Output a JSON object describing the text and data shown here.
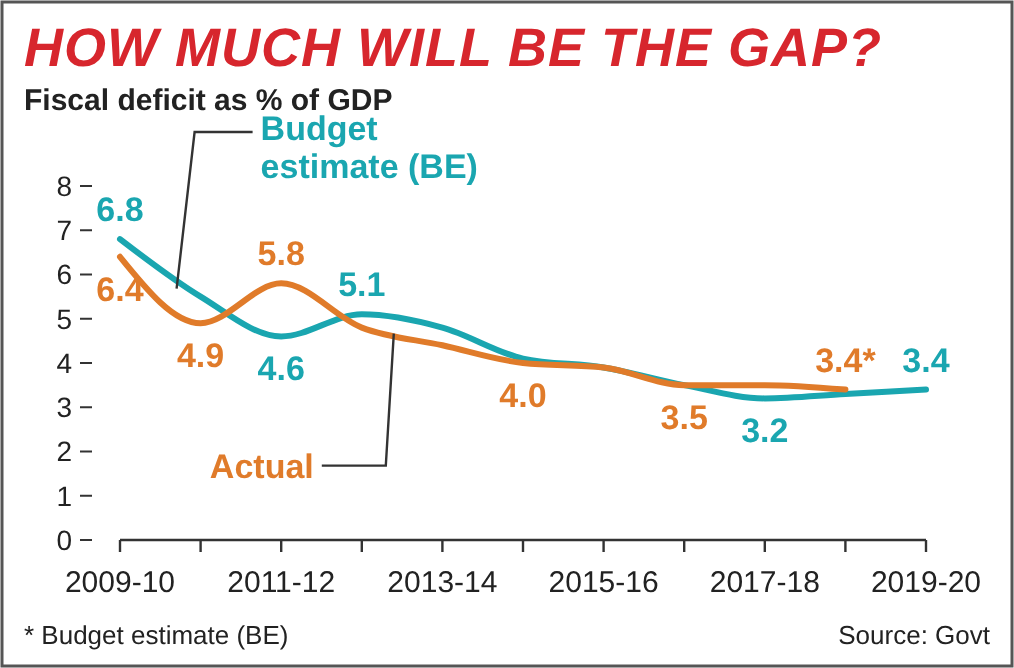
{
  "chart_data": {
    "type": "line",
    "title": "HOW MUCH WILL BE THE GAP?",
    "subtitle": "Fiscal deficit as % of GDP",
    "categories": [
      "2009-10",
      null,
      "2011-12",
      null,
      "2013-14",
      null,
      "2015-16",
      null,
      "2017-18",
      null,
      "2019-20"
    ],
    "series": [
      {
        "name": "Budget estimate (BE)",
        "color": "#1aa6b0",
        "values": [
          6.8,
          5.5,
          4.6,
          5.1,
          4.8,
          4.1,
          3.9,
          3.5,
          3.2,
          3.3,
          3.4
        ],
        "value_labels": [
          "6.8",
          null,
          "4.6",
          "5.1",
          null,
          null,
          null,
          null,
          "3.2",
          null,
          "3.4"
        ]
      },
      {
        "name": "Actual",
        "color": "#e07b2a",
        "values": [
          6.4,
          4.9,
          5.8,
          4.8,
          4.4,
          4.0,
          3.9,
          3.5,
          3.5,
          3.4,
          null
        ],
        "value_labels": [
          "6.4",
          "4.9",
          "5.8",
          null,
          null,
          "4.0",
          null,
          "3.5",
          null,
          "3.4*",
          null
        ]
      }
    ],
    "ylim": [
      0,
      8
    ],
    "yticks": [
      0,
      1,
      2,
      3,
      4,
      5,
      6,
      7,
      8
    ],
    "grid": false,
    "marker": "none",
    "line_style": "solid",
    "annotations": [
      "* Budget estimate (BE)",
      "Source: Govt"
    ]
  }
}
